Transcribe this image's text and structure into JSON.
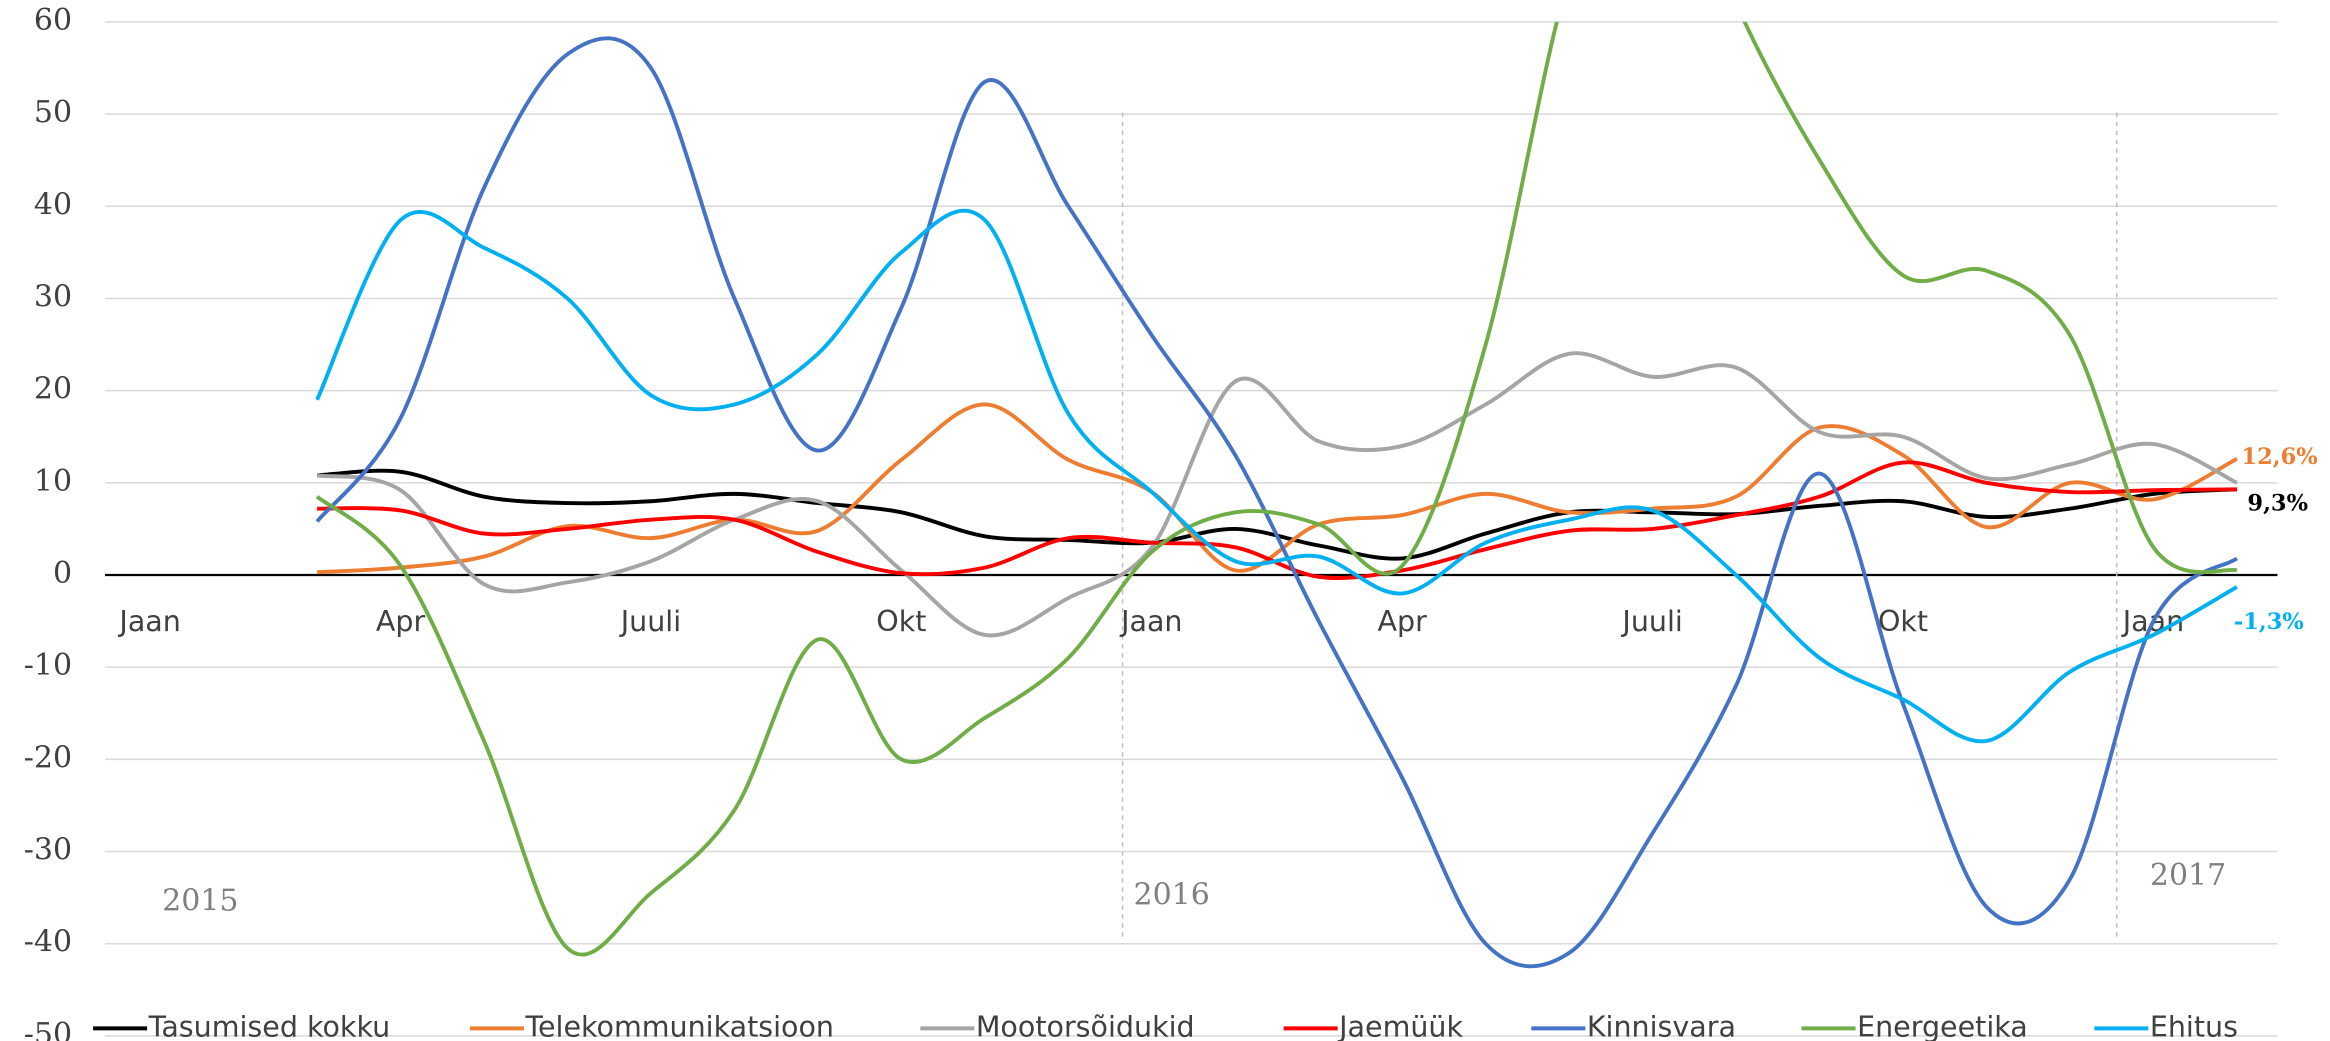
{
  "chart_data": {
    "type": "line",
    "categories": [
      "Jaan",
      null,
      null,
      "Apr",
      null,
      null,
      "Juuli",
      null,
      null,
      "Okt",
      null,
      null,
      "Jaan",
      null,
      null,
      "Apr",
      null,
      null,
      "Juuli",
      null,
      null,
      "Okt",
      null,
      null,
      "Jaan",
      null
    ],
    "ylim": [
      -50,
      60
    ],
    "yticks": [
      -50,
      -40,
      -30,
      -20,
      -10,
      0,
      10,
      20,
      30,
      40,
      50,
      60
    ],
    "grid": true,
    "series": [
      {
        "name": "Tasumised kokku",
        "color": "#000000",
        "values": [
          null,
          null,
          10.8,
          11.2,
          8.5,
          7.8,
          8,
          8.8,
          7.8,
          6.8,
          4.2,
          3.8,
          3.5,
          5,
          3.2,
          1.8,
          4.5,
          6.8,
          6.8,
          6.6,
          7.5,
          8,
          6.3,
          7.2,
          8.8,
          9.3
        ]
      },
      {
        "name": "Telekommunikatsioon",
        "color": "#ed7d31",
        "values": [
          null,
          null,
          0.3,
          0.8,
          2,
          5.3,
          4,
          6,
          4.8,
          12.5,
          18.5,
          12.5,
          9,
          0.5,
          5.5,
          6.5,
          8.8,
          6.8,
          7.2,
          8.5,
          16,
          13,
          5.2,
          10,
          8.2,
          12.6
        ]
      },
      {
        "name": "Mootorsõidukid",
        "color": "#a5a5a5",
        "values": [
          null,
          null,
          10.8,
          9.2,
          -1,
          -0.8,
          1.5,
          6,
          8,
          0.5,
          -6.5,
          -2.5,
          3,
          21,
          14.5,
          14,
          18.5,
          24,
          21.5,
          22.5,
          15.5,
          15,
          10.5,
          12,
          14.2,
          10
        ]
      },
      {
        "name": "Jaemüük",
        "color": "#ff0000",
        "values": [
          null,
          null,
          7.2,
          7,
          4.5,
          5,
          6,
          6,
          2.5,
          0.2,
          0.8,
          4,
          3.5,
          3,
          -0.2,
          0.5,
          2.8,
          4.8,
          5,
          6.5,
          8.5,
          12.2,
          10,
          9,
          9.2,
          9.3
        ]
      },
      {
        "name": "Kinnisvara",
        "color": "#4472c4",
        "values": [
          null,
          null,
          5.8,
          17,
          42,
          56.5,
          55,
          30,
          13.5,
          29,
          53.5,
          40,
          26,
          13,
          -5,
          -22,
          -40,
          -41,
          -28,
          -12,
          11,
          -14,
          -36,
          -33,
          -5,
          1.8
        ]
      },
      {
        "name": "Energeetika",
        "color": "#70ad47",
        "values": [
          null,
          null,
          8.5,
          1,
          -18,
          -40.5,
          -34.5,
          -25.5,
          -7,
          -20,
          -15.5,
          -9,
          2.5,
          6.8,
          5.5,
          1,
          25,
          65,
          85,
          62,
          45,
          32.5,
          33,
          26,
          3,
          0.5
        ]
      },
      {
        "name": "Ehitus",
        "color": "#00b0f0",
        "values": [
          null,
          null,
          19,
          38.5,
          35.5,
          30,
          19.5,
          18.5,
          24,
          35,
          38.5,
          17.5,
          9,
          1.5,
          2,
          -2,
          3.5,
          6,
          7,
          0,
          -9,
          -13.5,
          -18,
          -10.5,
          -6.5,
          -1.3
        ]
      }
    ],
    "annotations": [
      {
        "text": "2015",
        "color": "#7f7f7f"
      },
      {
        "text": "2016",
        "color": "#7f7f7f"
      },
      {
        "text": "2017",
        "color": "#7f7f7f"
      },
      {
        "text": "12,6%",
        "color": "#ed7d31"
      },
      {
        "text": "9,3%",
        "color": "#000000"
      },
      {
        "text": "-1,3%",
        "color": "#00b0f0"
      }
    ]
  }
}
